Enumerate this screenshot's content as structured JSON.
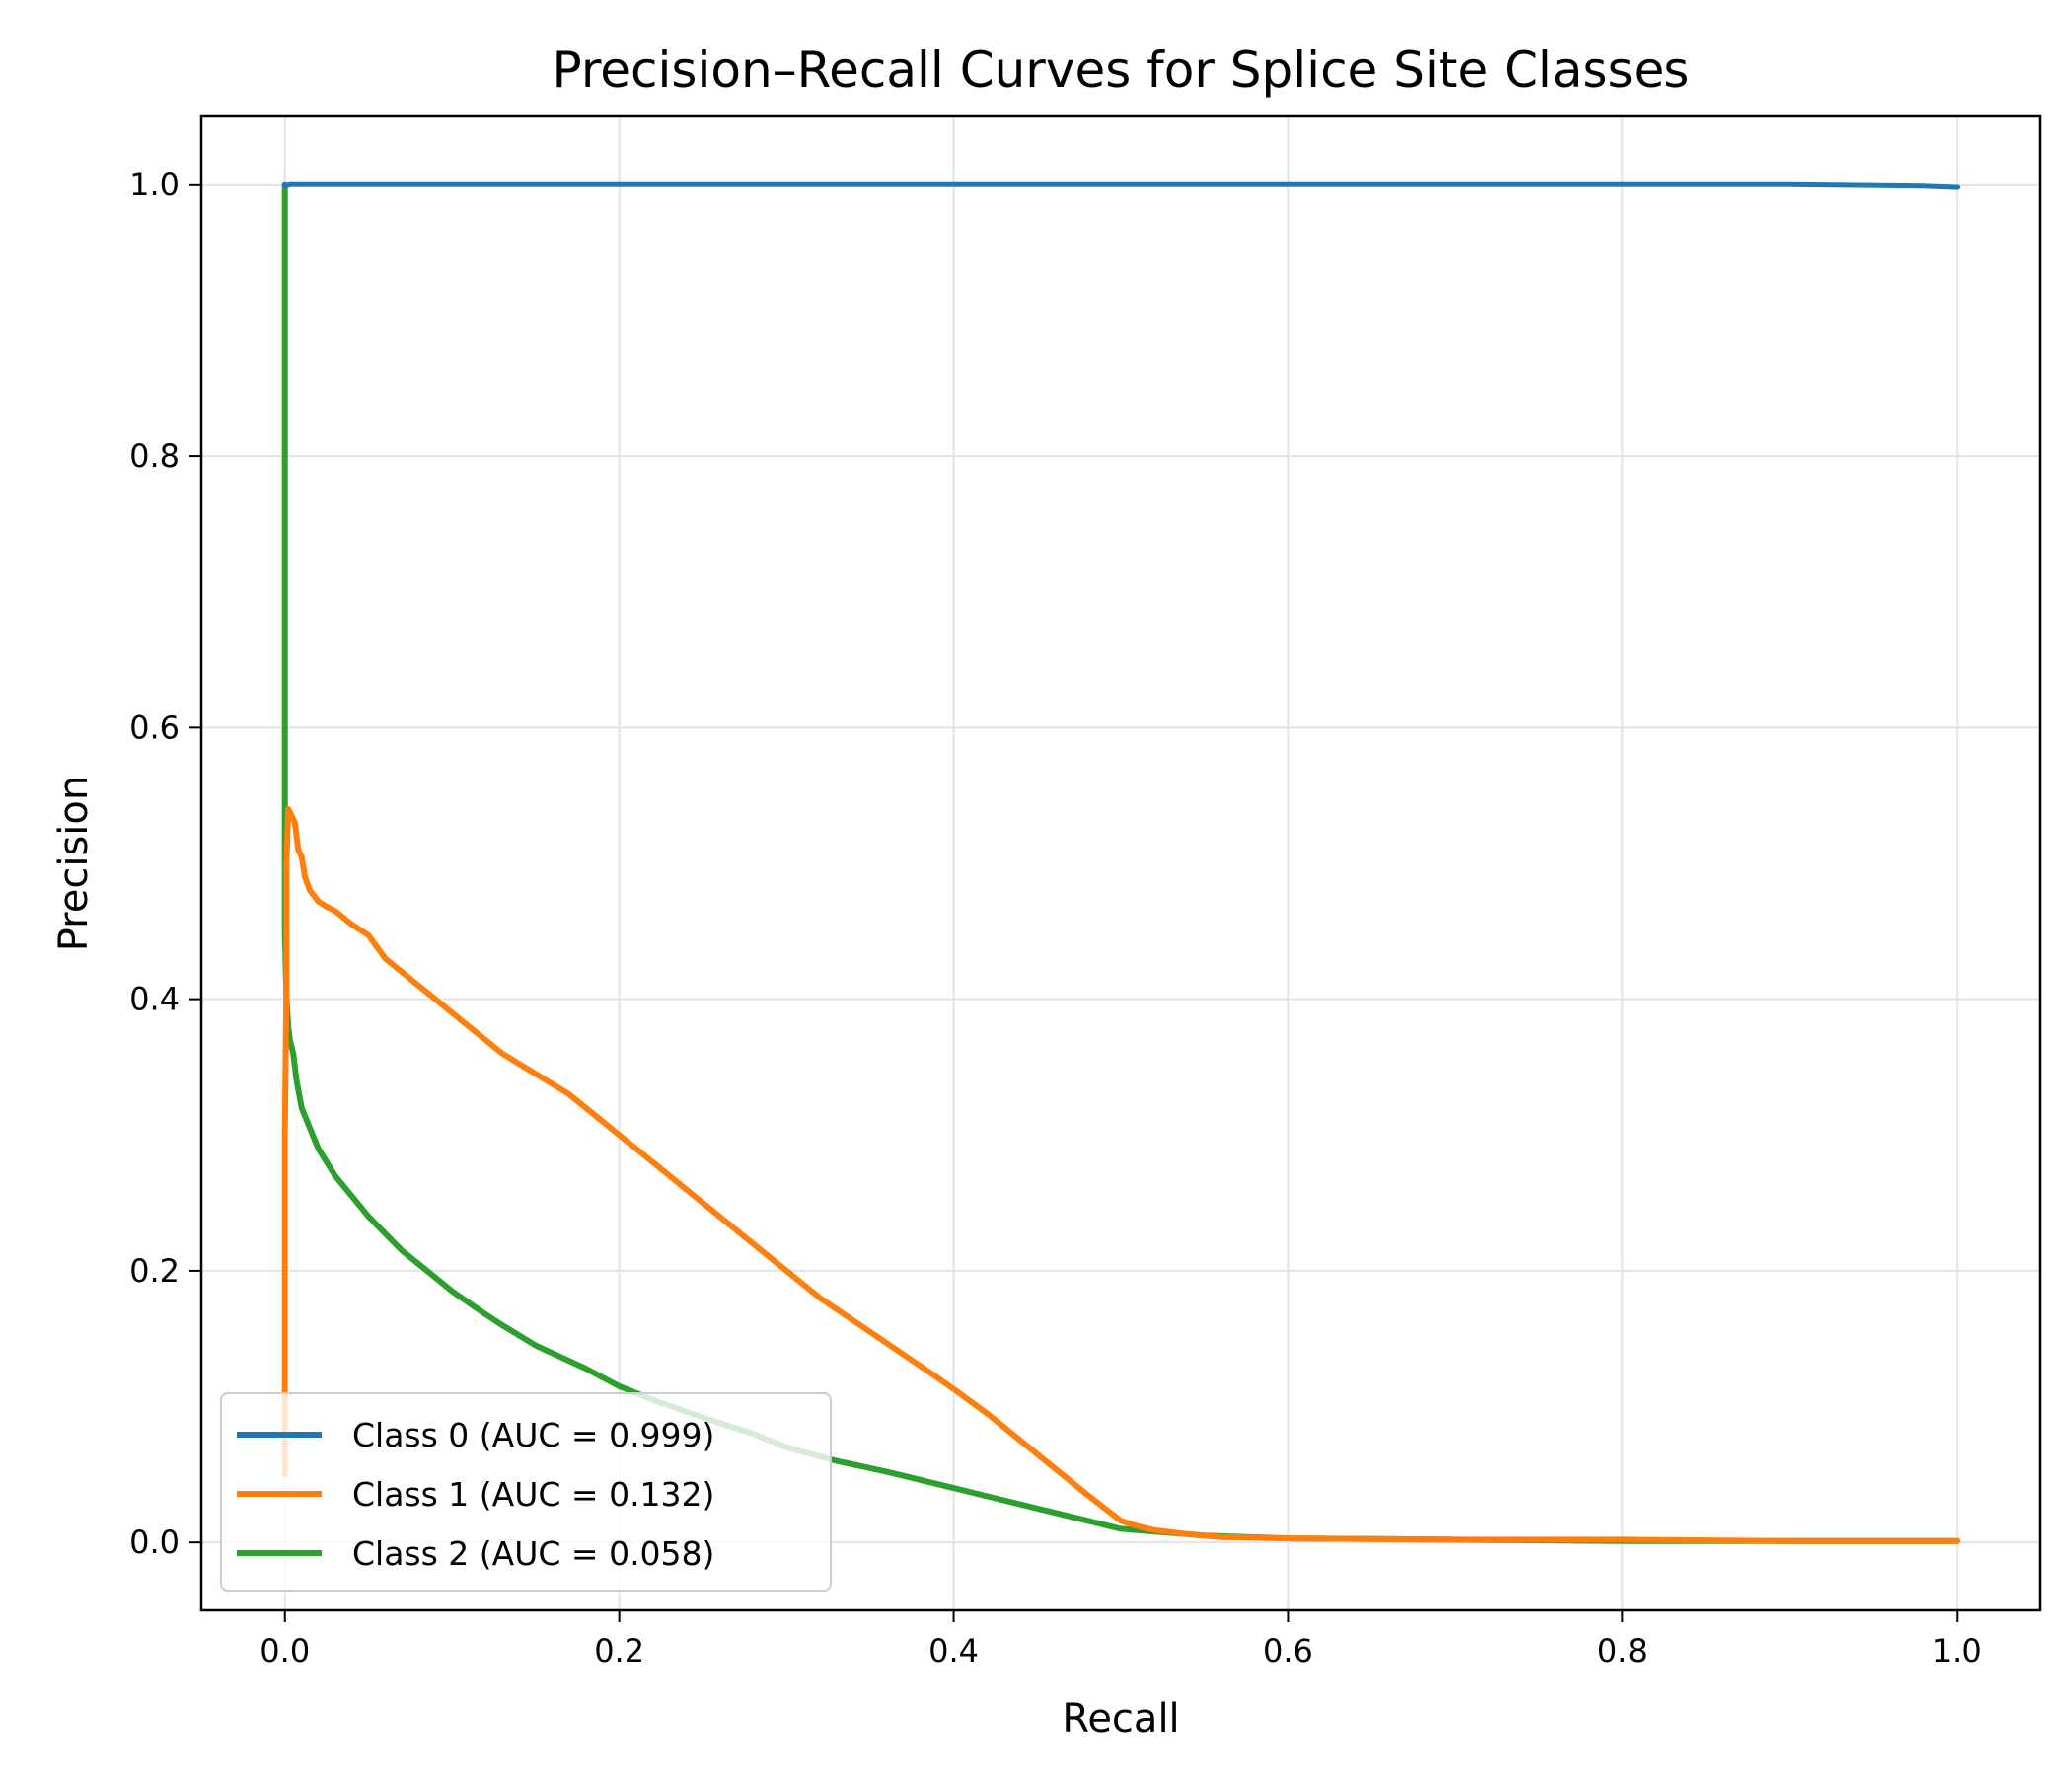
{
  "chart_data": {
    "type": "line",
    "title": "Precision–Recall Curves for Splice Site Classes",
    "xlabel": "Recall",
    "ylabel": "Precision",
    "xlim": [
      -0.05,
      1.05
    ],
    "ylim": [
      -0.05,
      1.05
    ],
    "xticks": [
      0.0,
      0.2,
      0.4,
      0.6,
      0.8,
      1.0
    ],
    "xtick_labels": [
      "0.0",
      "0.2",
      "0.4",
      "0.6",
      "0.8",
      "1.0"
    ],
    "yticks": [
      0.0,
      0.2,
      0.4,
      0.6,
      0.8,
      1.0
    ],
    "ytick_labels": [
      "0.0",
      "0.2",
      "0.4",
      "0.6",
      "0.8",
      "1.0"
    ],
    "grid": true,
    "legend_position": "lower-left",
    "series": [
      {
        "name": "Class 0 (AUC = 0.999)",
        "color": "#1f77b4",
        "x": [
          0.0,
          0.0,
          0.003,
          0.1,
          0.3,
          0.5,
          0.7,
          0.9,
          0.98,
          1.0
        ],
        "y": [
          1.0,
          0.999,
          1.0,
          1.0,
          1.0,
          1.0,
          1.0,
          1.0,
          0.999,
          0.998
        ]
      },
      {
        "name": "Class 1 (AUC = 0.132)",
        "color": "#ff7f0e",
        "x": [
          0.0,
          0.0,
          0.0,
          0.001,
          0.001,
          0.002,
          0.004,
          0.006,
          0.008,
          0.01,
          0.012,
          0.015,
          0.02,
          0.025,
          0.03,
          0.04,
          0.05,
          0.06,
          0.07,
          0.08,
          0.09,
          0.1,
          0.11,
          0.12,
          0.13,
          0.15,
          0.17,
          0.2,
          0.23,
          0.26,
          0.29,
          0.32,
          0.35,
          0.38,
          0.4,
          0.42,
          0.44,
          0.46,
          0.48,
          0.5,
          0.51,
          0.52,
          0.54,
          0.56,
          0.6,
          0.7,
          0.8,
          0.9,
          1.0
        ],
        "y": [
          0.05,
          0.11,
          0.3,
          0.42,
          0.5,
          0.54,
          0.535,
          0.53,
          0.51,
          0.505,
          0.49,
          0.48,
          0.472,
          0.468,
          0.465,
          0.455,
          0.447,
          0.43,
          0.42,
          0.41,
          0.4,
          0.39,
          0.38,
          0.37,
          0.36,
          0.345,
          0.33,
          0.3,
          0.27,
          0.24,
          0.21,
          0.18,
          0.155,
          0.13,
          0.113,
          0.095,
          0.075,
          0.055,
          0.035,
          0.016,
          0.012,
          0.009,
          0.006,
          0.004,
          0.003,
          0.002,
          0.002,
          0.001,
          0.001
        ]
      },
      {
        "name": "Class 2 (AUC = 0.058)",
        "color": "#2ca02c",
        "x": [
          0.0,
          0.0,
          0.0,
          0.0,
          0.001,
          0.002,
          0.003,
          0.004,
          0.005,
          0.007,
          0.01,
          0.015,
          0.02,
          0.03,
          0.04,
          0.05,
          0.07,
          0.08,
          0.1,
          0.12,
          0.13,
          0.15,
          0.18,
          0.2,
          0.22,
          0.25,
          0.28,
          0.3,
          0.33,
          0.36,
          0.4,
          0.45,
          0.5,
          0.55,
          0.6,
          0.7,
          0.8,
          0.9,
          1.0
        ],
        "y": [
          1.0,
          0.7,
          0.55,
          0.45,
          0.4,
          0.38,
          0.37,
          0.365,
          0.36,
          0.34,
          0.32,
          0.305,
          0.29,
          0.27,
          0.255,
          0.24,
          0.215,
          0.205,
          0.185,
          0.168,
          0.16,
          0.145,
          0.128,
          0.115,
          0.105,
          0.092,
          0.08,
          0.07,
          0.06,
          0.052,
          0.04,
          0.025,
          0.01,
          0.005,
          0.003,
          0.002,
          0.001,
          0.001,
          0.001
        ]
      }
    ]
  }
}
